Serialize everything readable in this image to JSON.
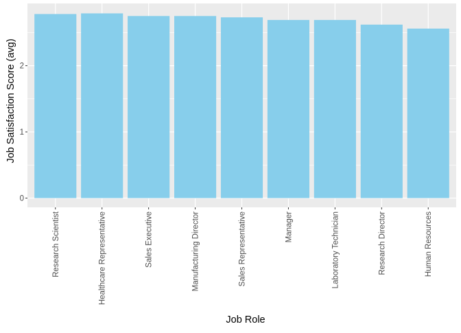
{
  "chart_data": {
    "type": "bar",
    "xlabel": "Job Role",
    "ylabel": "Job Satisfaction Score (avg)",
    "categories": [
      "Research Scientist",
      "Healthcare Representative",
      "Sales Executive",
      "Manufacturing Director",
      "Sales Representative",
      "Manager",
      "Laboratory Technician",
      "Research Director",
      "Human Resources"
    ],
    "values": [
      2.78,
      2.79,
      2.75,
      2.75,
      2.73,
      2.69,
      2.69,
      2.62,
      2.56
    ],
    "ylim": [
      -0.14,
      2.94
    ],
    "yticks": [
      0,
      1,
      2
    ],
    "grid": true,
    "legend": "none",
    "colors": {
      "bar": "#87ceeb",
      "panel": "#ebebeb",
      "grid_major": "#ffffff",
      "text": "#4d4d4d",
      "title_text": "#000000"
    }
  }
}
